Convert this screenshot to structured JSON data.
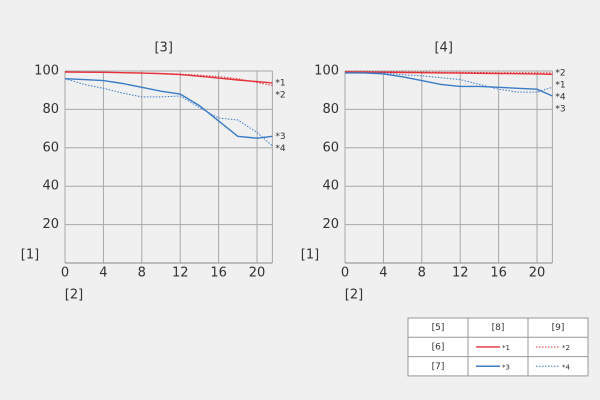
{
  "chart_data": [
    {
      "type": "line",
      "title": "[3]",
      "y_label": "[1]",
      "x_label": "[2]",
      "x": [
        0,
        2,
        4,
        6,
        8,
        10,
        12,
        14,
        16,
        18,
        20,
        21.6
      ],
      "xlim": [
        0,
        21.6
      ],
      "ylim": [
        0,
        100
      ],
      "xticks": [
        0,
        4,
        8,
        12,
        16,
        20
      ],
      "yticks": [
        20,
        40,
        60,
        80,
        100
      ],
      "grid": true,
      "series": [
        {
          "name": "*1",
          "color": "#e5323b",
          "dash": "solid",
          "values": [
            99.5,
            99.4,
            99.3,
            99.1,
            98.9,
            98.6,
            98.1,
            97.3,
            96.3,
            95.3,
            94.5,
            93.8
          ]
        },
        {
          "name": "*2",
          "color": "#e5323b",
          "dash": "dotted",
          "values": [
            99.6,
            99.5,
            99.4,
            99.2,
            99,
            98.8,
            98.4,
            97.8,
            97.1,
            96,
            94,
            92.5
          ]
        },
        {
          "name": "*3",
          "color": "#3b7cc6",
          "dash": "solid",
          "values": [
            96,
            95.5,
            95,
            93.5,
            91.5,
            89.5,
            88,
            82,
            74,
            66,
            65,
            66
          ]
        },
        {
          "name": "*4",
          "color": "#3b7cc6",
          "dash": "dotted",
          "values": [
            96,
            93,
            91,
            88.5,
            86.5,
            86.5,
            87,
            81,
            75.5,
            74.5,
            68,
            61
          ]
        }
      ]
    },
    {
      "type": "line",
      "title": "[4]",
      "y_label": "[1]",
      "x_label": "[2]",
      "x": [
        0,
        2,
        4,
        6,
        8,
        10,
        12,
        14,
        16,
        18,
        20,
        21.6
      ],
      "xlim": [
        0,
        21.6
      ],
      "ylim": [
        0,
        100
      ],
      "xticks": [
        0,
        4,
        8,
        12,
        16,
        20
      ],
      "yticks": [
        20,
        40,
        60,
        80,
        100
      ],
      "grid": true,
      "series": [
        {
          "name": "*1",
          "color": "#e5323b",
          "dash": "solid",
          "values": [
            99.5,
            99.4,
            99.3,
            99.2,
            99.1,
            99,
            98.9,
            98.8,
            98.7,
            98.6,
            98.5,
            98.3
          ]
        },
        {
          "name": "*2",
          "color": "#e5323b",
          "dash": "dotted",
          "values": [
            99.8,
            99.8,
            99.7,
            99.6,
            99.5,
            99.4,
            99.3,
            99.2,
            99.1,
            99.1,
            99,
            99
          ]
        },
        {
          "name": "*3",
          "color": "#3b7cc6",
          "dash": "solid",
          "values": [
            99,
            99,
            98.5,
            97,
            95,
            93,
            92,
            92,
            91.5,
            91,
            90.5,
            87
          ]
        },
        {
          "name": "*4",
          "color": "#3b7cc6",
          "dash": "dotted",
          "values": [
            99,
            99,
            99,
            98,
            97.5,
            96.5,
            95.5,
            93,
            90.5,
            89,
            89,
            91.5
          ]
        }
      ]
    }
  ],
  "legend_table": {
    "header": [
      "[5]",
      "[8]",
      "[9]"
    ],
    "rows": [
      "[6]",
      "[7]"
    ]
  }
}
